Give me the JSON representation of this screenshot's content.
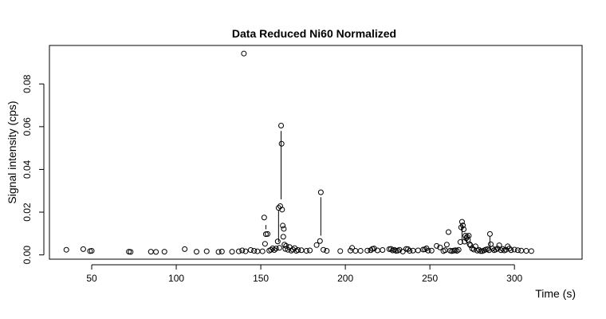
{
  "chart_data": {
    "type": "scatter",
    "title": "Data Reduced Ni60 Normalized",
    "xlabel": "Time (s)",
    "ylabel": "Signal intensity (cps)",
    "xlim": [
      25,
      340
    ],
    "ylim": [
      -0.002,
      0.098
    ],
    "x_ticks": [
      50,
      100,
      150,
      200,
      250,
      300
    ],
    "y_ticks": [
      0.0,
      0.02,
      0.04,
      0.06,
      0.08
    ],
    "y_tick_labels": [
      "0.00",
      "0.02",
      "0.04",
      "0.06",
      "0.08"
    ],
    "grid": false,
    "legend": "none",
    "marker": "open-circle",
    "series": [
      {
        "points": [
          [
            35,
            0.0024
          ],
          [
            45,
            0.0027
          ],
          [
            49,
            0.0018
          ],
          [
            50,
            0.0019
          ],
          [
            72,
            0.0015
          ],
          [
            73,
            0.0014
          ],
          [
            85,
            0.0015
          ],
          [
            88,
            0.0014
          ],
          [
            93,
            0.0015
          ],
          [
            105,
            0.0027
          ],
          [
            112,
            0.0015
          ],
          [
            118,
            0.0017
          ],
          [
            125,
            0.0014
          ],
          [
            127,
            0.0016
          ],
          [
            133,
            0.0015
          ],
          [
            137,
            0.0017
          ],
          [
            139,
            0.0021
          ],
          [
            140,
            0.0942
          ],
          [
            141,
            0.0017
          ],
          [
            144,
            0.0023
          ],
          [
            146,
            0.0019
          ],
          [
            148,
            0.0017
          ],
          [
            151,
            0.0017
          ],
          [
            152,
            0.0175
          ],
          [
            152.5,
            0.0052
          ],
          [
            153,
            0.0097
          ],
          [
            154,
            0.0098
          ],
          [
            155,
            0.002
          ],
          [
            156,
            0.0024
          ],
          [
            157,
            0.0031
          ],
          [
            158,
            0.0023
          ],
          [
            159,
            0.003
          ],
          [
            160,
            0.0063
          ],
          [
            160.5,
            0.022
          ],
          [
            161,
            0.0033
          ],
          [
            161.5,
            0.0228
          ],
          [
            162,
            0.0605
          ],
          [
            162.3,
            0.052
          ],
          [
            162.6,
            0.0212
          ],
          [
            163,
            0.0137
          ],
          [
            163.3,
            0.0085
          ],
          [
            163.6,
            0.0122
          ],
          [
            164,
            0.0048
          ],
          [
            164.5,
            0.0028
          ],
          [
            165,
            0.0042
          ],
          [
            166,
            0.0024
          ],
          [
            167,
            0.0037
          ],
          [
            168,
            0.002
          ],
          [
            169,
            0.0025
          ],
          [
            170,
            0.0032
          ],
          [
            171,
            0.0019
          ],
          [
            172,
            0.0023
          ],
          [
            174,
            0.0022
          ],
          [
            177,
            0.0019
          ],
          [
            179,
            0.0021
          ],
          [
            183,
            0.0046
          ],
          [
            185,
            0.0065
          ],
          [
            185.5,
            0.0293
          ],
          [
            187,
            0.0024
          ],
          [
            189,
            0.0019
          ],
          [
            197,
            0.0018
          ],
          [
            203,
            0.002
          ],
          [
            204,
            0.0033
          ],
          [
            206,
            0.0019
          ],
          [
            209,
            0.0019
          ],
          [
            213,
            0.002
          ],
          [
            215,
            0.0022
          ],
          [
            216,
            0.0028
          ],
          [
            217,
            0.003
          ],
          [
            219,
            0.0021
          ],
          [
            222,
            0.0023
          ],
          [
            226,
            0.0027
          ],
          [
            227,
            0.0028
          ],
          [
            228,
            0.0021
          ],
          [
            229,
            0.0024
          ],
          [
            230,
            0.0019
          ],
          [
            231,
            0.002
          ],
          [
            232,
            0.0024
          ],
          [
            234,
            0.0016
          ],
          [
            236,
            0.0028
          ],
          [
            237,
            0.0027
          ],
          [
            238,
            0.0019
          ],
          [
            240,
            0.002
          ],
          [
            243,
            0.0021
          ],
          [
            246,
            0.0025
          ],
          [
            247,
            0.0026
          ],
          [
            248,
            0.0031
          ],
          [
            249,
            0.002
          ],
          [
            251,
            0.002
          ],
          [
            254,
            0.0042
          ],
          [
            256,
            0.0035
          ],
          [
            258,
            0.0018
          ],
          [
            259,
            0.0022
          ],
          [
            260,
            0.0048
          ],
          [
            261,
            0.0107
          ],
          [
            262,
            0.002
          ],
          [
            263,
            0.0018
          ],
          [
            264,
            0.002
          ],
          [
            265,
            0.0022
          ],
          [
            266,
            0.0019
          ],
          [
            267,
            0.0024
          ],
          [
            268,
            0.006
          ],
          [
            268.5,
            0.0129
          ],
          [
            269,
            0.0155
          ],
          [
            269.5,
            0.0138
          ],
          [
            270,
            0.012
          ],
          [
            270.5,
            0.0062
          ],
          [
            271,
            0.009
          ],
          [
            271.5,
            0.0078
          ],
          [
            272,
            0.0085
          ],
          [
            272.5,
            0.007
          ],
          [
            273,
            0.009
          ],
          [
            273.5,
            0.005
          ],
          [
            274,
            0.0045
          ],
          [
            275,
            0.003
          ],
          [
            276,
            0.0025
          ],
          [
            277,
            0.004
          ],
          [
            278,
            0.002
          ],
          [
            279,
            0.0024
          ],
          [
            280,
            0.0018
          ],
          [
            281,
            0.0018
          ],
          [
            282,
            0.0021
          ],
          [
            283,
            0.0025
          ],
          [
            284,
            0.0027
          ],
          [
            285,
            0.0022
          ],
          [
            285.5,
            0.0098
          ],
          [
            286,
            0.005
          ],
          [
            287,
            0.003
          ],
          [
            288,
            0.0022
          ],
          [
            289,
            0.0025
          ],
          [
            290,
            0.003
          ],
          [
            291,
            0.0045
          ],
          [
            292,
            0.0022
          ],
          [
            293,
            0.0028
          ],
          [
            294,
            0.0021
          ],
          [
            295,
            0.0024
          ],
          [
            296,
            0.004
          ],
          [
            297,
            0.003
          ],
          [
            298,
            0.0022
          ],
          [
            300,
            0.0025
          ],
          [
            302,
            0.0022
          ],
          [
            304,
            0.002
          ],
          [
            307,
            0.0019
          ],
          [
            310,
            0.0018
          ]
        ],
        "segments": [
          [
            [
              153,
              0.012
            ],
            [
              153,
              0.014
            ]
          ],
          [
            [
              160.5,
              0.006
            ],
            [
              160.5,
              0.021
            ]
          ],
          [
            [
              162,
              0.026
            ],
            [
              162,
              0.058
            ]
          ],
          [
            [
              185.5,
              0.009
            ],
            [
              185.5,
              0.027
            ]
          ],
          [
            [
              269,
              0.007
            ],
            [
              269,
              0.014
            ]
          ],
          [
            [
              285.5,
              0.0035
            ],
            [
              285.5,
              0.0085
            ]
          ]
        ]
      }
    ]
  }
}
